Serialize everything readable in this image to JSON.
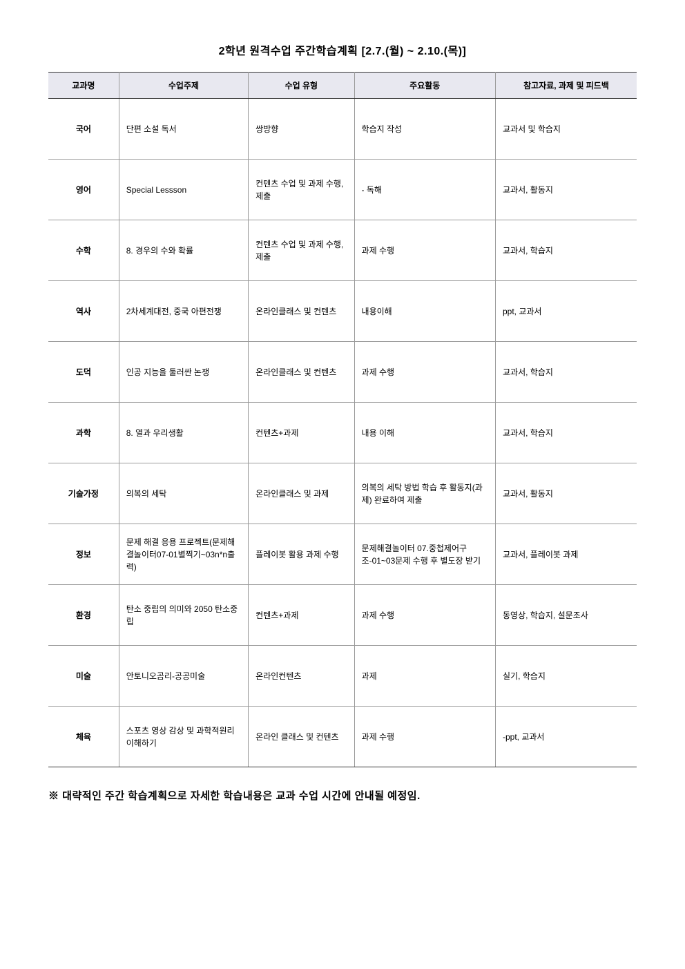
{
  "title": "2학년 원격수업 주간학습계획 [2.7.(월) ~ 2.10.(목)]",
  "headers": {
    "subject": "교과명",
    "topic": "수업주제",
    "type": "수업 유형",
    "activity": "주요활동",
    "materials": "참고자료, 과제 및 피드백"
  },
  "rows": [
    {
      "subject": "국어",
      "topic": "단편 소설 독서",
      "type": "쌍방향",
      "activity": "학습지 작성",
      "materials": "교과서 및 학습지"
    },
    {
      "subject": "영어",
      "topic": "Special  Lessson",
      "type": "컨텐츠 수업 및 과제 수행, 제출",
      "activity": "- 독해",
      "materials": "교과서, 활동지"
    },
    {
      "subject": "수학",
      "topic": "8. 경우의 수와 확률",
      "type": "컨텐츠 수업 및 과제 수행, 제출",
      "activity": "과제 수행",
      "materials": "교과서, 학습지"
    },
    {
      "subject": "역사",
      "topic": "2차세계대전, 중국 아편전쟁",
      "type": "온라인클래스 및 컨텐츠",
      "activity": "내용이해",
      "materials": "ppt, 교과서"
    },
    {
      "subject": "도덕",
      "topic": "인공 지능을 둘러싼 논쟁",
      "type": "온라인클래스 및 컨텐츠",
      "activity": "과제 수행",
      "materials": "교과서, 학습지"
    },
    {
      "subject": "과학",
      "topic": "8. 열과 우리생활",
      "type": "컨텐츠+과제",
      "activity": "내용 이해",
      "materials": "교과서, 학습지"
    },
    {
      "subject": "기술가정",
      "topic": "의복의 세탁",
      "type": "온라인클래스 및 과제",
      "activity": "의복의 세탁 방법 학습 후 활동지(과제) 완료하여 제출",
      "materials": "교과서, 활동지"
    },
    {
      "subject": "정보",
      "topic": "문제 해결 응용 프로젝트(문제해결놀이터07-01별찍기~03n*n출력)",
      "type": "플레이봇 활용 과제 수행",
      "activity": "문제해결놀이터 07.중첩제어구조-01~03문제 수행 후 별도장 받기",
      "materials": "교과서, 플레이봇 과제"
    },
    {
      "subject": "환경",
      "topic": "탄소 중립의 의미와 2050 탄소중립",
      "type": "컨텐츠+과제",
      "activity": "과제 수행",
      "materials": "동영상, 학습지, 설문조사"
    },
    {
      "subject": "미술",
      "topic": "안토니오곰리-공공미술",
      "type": "온라인컨텐츠",
      "activity": "과제",
      "materials": "실기, 학습지"
    },
    {
      "subject": "체육",
      "topic": "스포츠 영상 감상 및 과학적원리 이해하기",
      "type": "온라인 클래스 및 컨텐츠",
      "activity": "과제 수행",
      "materials": "-ppt, 교과서"
    }
  ],
  "footerNote": "※ 대략적인 주간 학습계획으로 자세한 학습내용은 교과 수업 시간에 안내될 예정임."
}
